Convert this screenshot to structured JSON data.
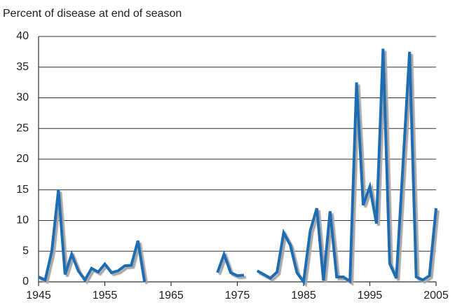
{
  "chart_data": {
    "type": "line",
    "title": "Percent of disease at end of season",
    "x": [
      1945,
      1946,
      1947,
      1948,
      1949,
      1950,
      1951,
      1952,
      1953,
      1954,
      1955,
      1956,
      1957,
      1958,
      1959,
      1960,
      1961,
      1962,
      1963,
      1964,
      1965,
      1966,
      1967,
      1968,
      1969,
      1970,
      1971,
      1972,
      1973,
      1974,
      1975,
      1976,
      1977,
      1978,
      1979,
      1980,
      1981,
      1982,
      1983,
      1984,
      1985,
      1986,
      1987,
      1988,
      1989,
      1990,
      1991,
      1992,
      1993,
      1994,
      1995,
      1996,
      1997,
      1998,
      1999,
      2000,
      2001,
      2002,
      2003,
      2004,
      2005
    ],
    "series": [
      {
        "color": "#1f6db3",
        "values": [
          0.8,
          0.3,
          5,
          15,
          1.2,
          4.5,
          1.8,
          0.3,
          2.2,
          1.6,
          2.9,
          1.5,
          1.8,
          2.6,
          2.7,
          6.7,
          0,
          null,
          null,
          null,
          null,
          null,
          null,
          null,
          null,
          null,
          null,
          1.5,
          4.5,
          1.5,
          1,
          1.1,
          null,
          1.8,
          1.2,
          0.6,
          1.6,
          8,
          6,
          1.5,
          0,
          8.3,
          12,
          0.2,
          11.5,
          0.8,
          0.8,
          0.1,
          32.5,
          12.5,
          15.5,
          9.5,
          38,
          3,
          0.6,
          19,
          37.5,
          0.8,
          0.3,
          1,
          12
        ]
      }
    ],
    "xlim": [
      1945,
      2005
    ],
    "xticks": [
      1945,
      1955,
      1965,
      1975,
      1985,
      1995,
      2005
    ],
    "ylim": [
      0,
      40
    ],
    "yticks": [
      0,
      5,
      10,
      15,
      20,
      25,
      30,
      35,
      40
    ],
    "grid": true
  }
}
